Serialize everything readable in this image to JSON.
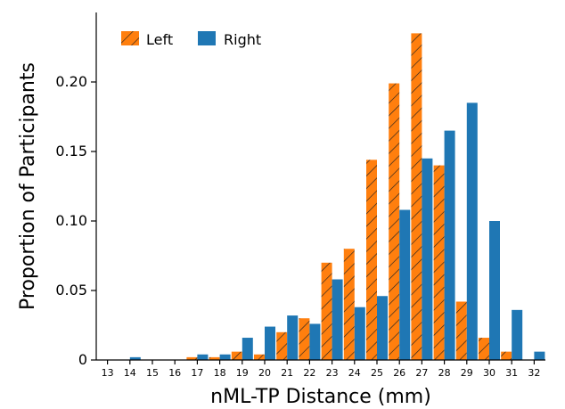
{
  "chart_data": {
    "type": "bar",
    "xlabel": "nML-TP Distance (mm)",
    "ylabel": "Proportion of Participants",
    "categories": [
      "13",
      "14",
      "15",
      "16",
      "17",
      "18",
      "19",
      "20",
      "21",
      "22",
      "23",
      "24",
      "25",
      "26",
      "27",
      "28",
      "29",
      "30",
      "31",
      "32"
    ],
    "ylim": [
      0,
      0.25
    ],
    "yticks": [
      0,
      0.05,
      0.1,
      0.15,
      0.2
    ],
    "ytick_labels": [
      "0",
      "0.05",
      "0.10",
      "0.15",
      "0.20"
    ],
    "legend": {
      "placement": "top-left"
    },
    "grid": false,
    "series": [
      {
        "name": "Left",
        "color": "#ff7f0e",
        "pattern": "hatched",
        "values": [
          0,
          0,
          0,
          0,
          0.002,
          0.002,
          0.006,
          0.004,
          0.02,
          0.03,
          0.07,
          0.08,
          0.144,
          0.199,
          0.235,
          0.14,
          0.042,
          0.016,
          0.006,
          0
        ]
      },
      {
        "name": "Right",
        "color": "#1f77b4",
        "values": [
          0,
          0.002,
          0,
          0,
          0.004,
          0.004,
          0.016,
          0.024,
          0.032,
          0.026,
          0.058,
          0.038,
          0.046,
          0.108,
          0.145,
          0.165,
          0.185,
          0.1,
          0.036,
          0.006
        ]
      }
    ]
  }
}
